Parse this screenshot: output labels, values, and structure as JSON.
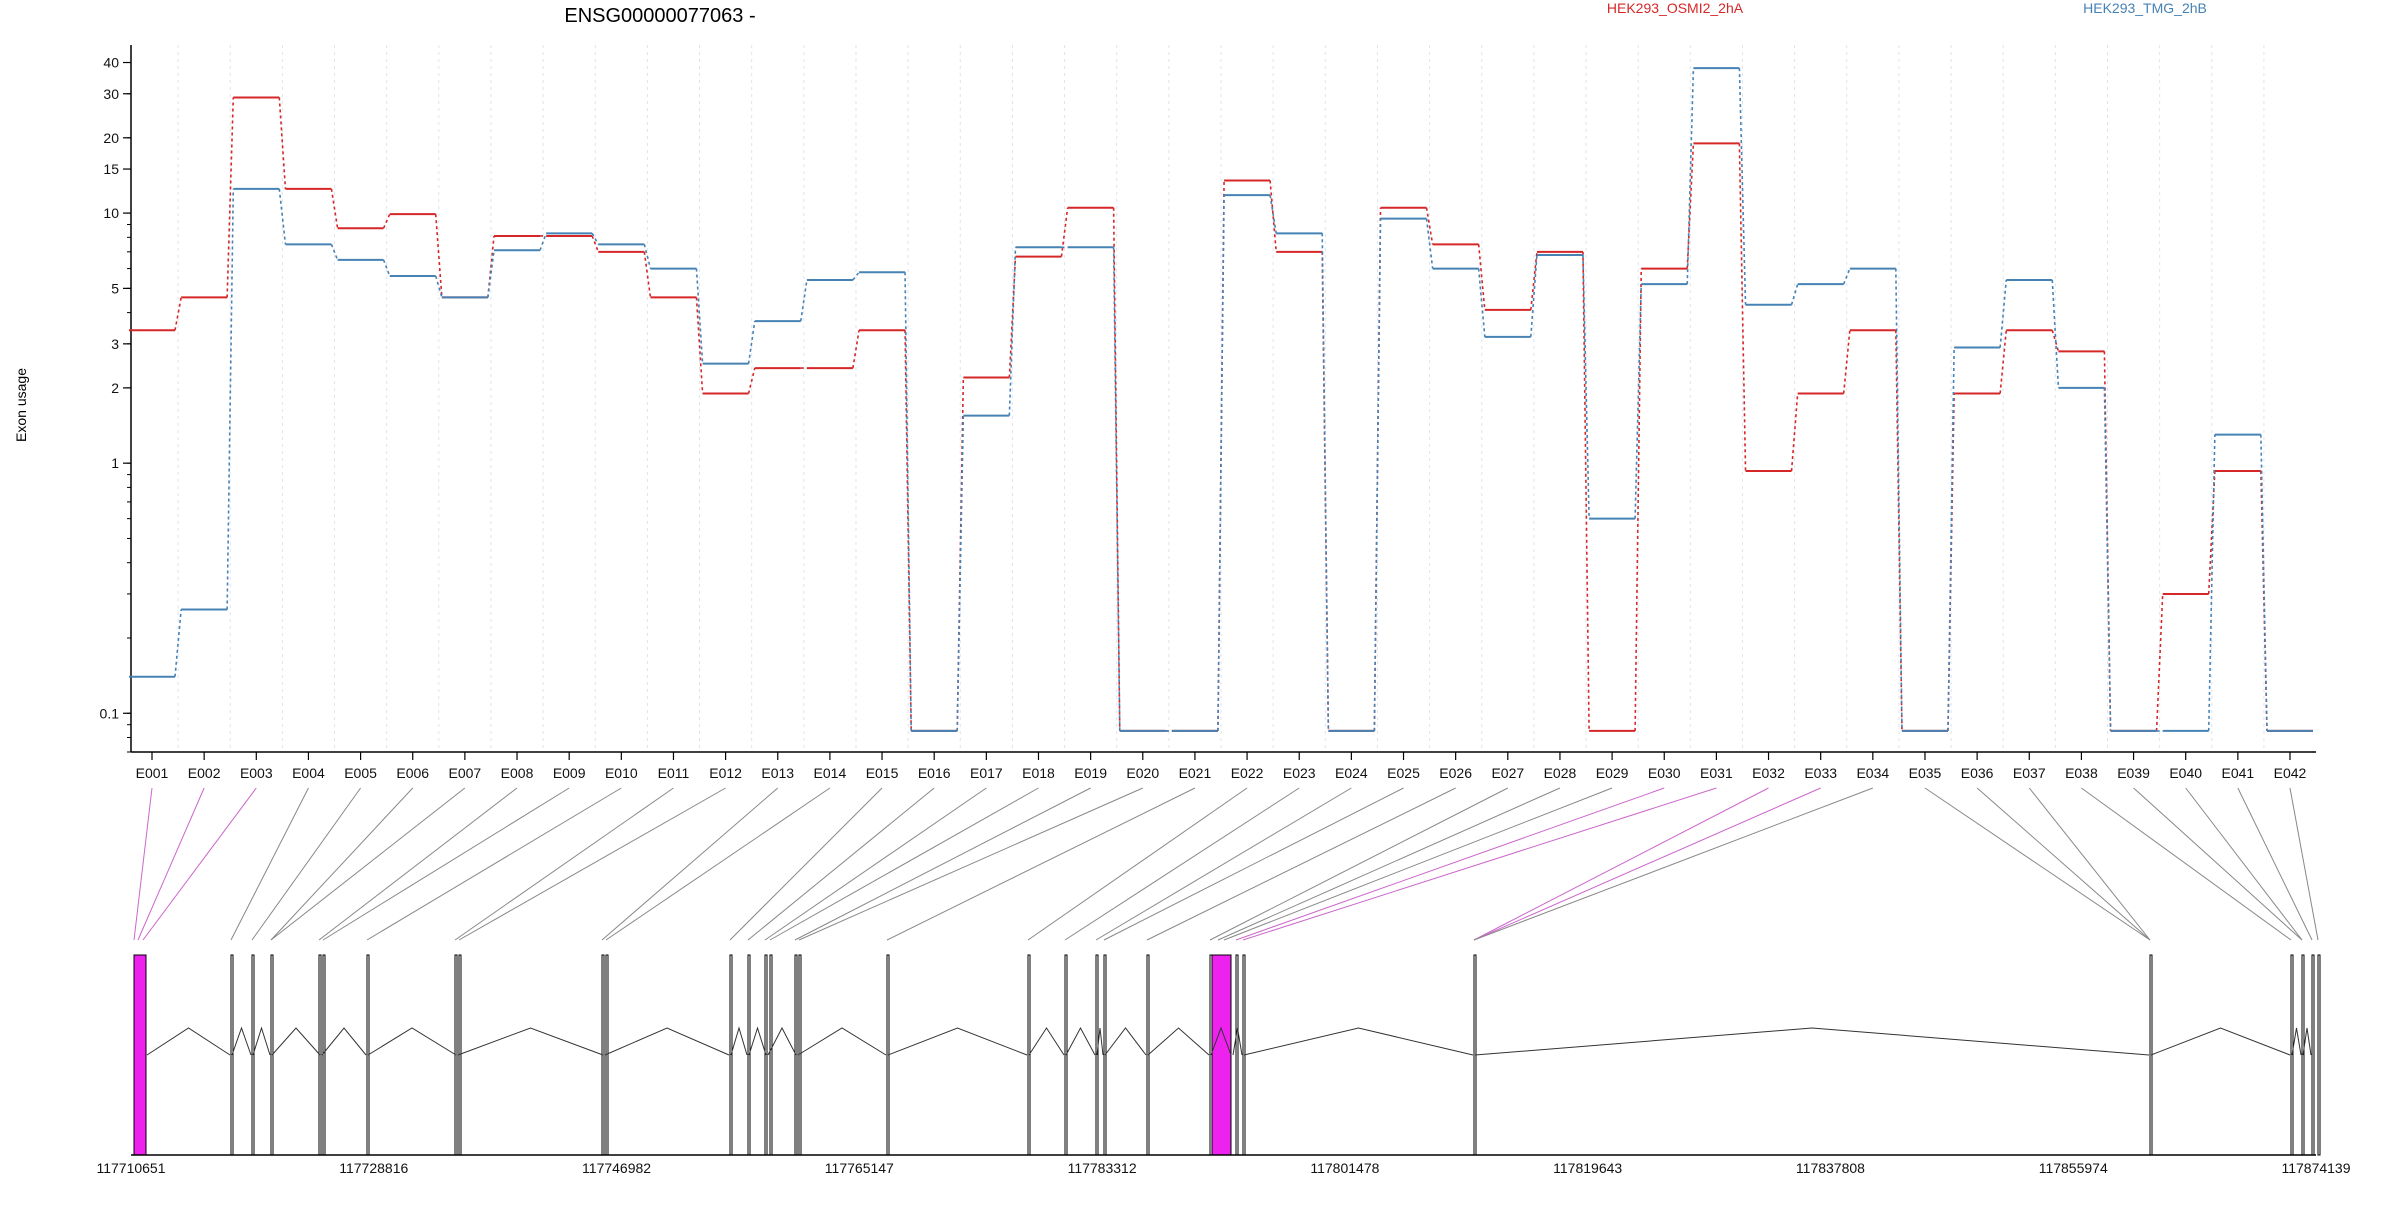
{
  "chart_data": {
    "type": "line",
    "title": "ENSG00000077063 -",
    "ylabel": "Exon usage",
    "xlabel": "",
    "y_scale": "log",
    "ylim": [
      0.07,
      47
    ],
    "y_ticks": [
      0.1,
      1,
      2,
      3,
      5,
      10,
      15,
      20,
      30,
      40
    ],
    "y_tick_labels": [
      "0.1",
      "1",
      "2",
      "3",
      "5",
      "10",
      "15",
      "20",
      "30",
      "40"
    ],
    "grid": "vertical dotted",
    "legend_placement": "top",
    "categories": [
      "E001",
      "E002",
      "E003",
      "E004",
      "E005",
      "E006",
      "E007",
      "E008",
      "E009",
      "E010",
      "E011",
      "E012",
      "E013",
      "E014",
      "E015",
      "E016",
      "E017",
      "E018",
      "E019",
      "E020",
      "E021",
      "E022",
      "E023",
      "E024",
      "E025",
      "E026",
      "E027",
      "E028",
      "E029",
      "E030",
      "E031",
      "E032",
      "E033",
      "E034",
      "E035",
      "E036",
      "E037",
      "E038",
      "E039",
      "E040",
      "E041",
      "E042"
    ],
    "series": [
      {
        "name": "HEK293_OSMI2_2hA",
        "color": "#d62728",
        "values": [
          3.4,
          4.6,
          29,
          12.5,
          8.7,
          9.9,
          4.6,
          8.1,
          8.1,
          7.0,
          4.6,
          1.9,
          2.4,
          2.4,
          3.4,
          0.085,
          2.2,
          6.7,
          10.5,
          0.085,
          0.085,
          13.5,
          7.0,
          0.085,
          10.5,
          7.5,
          4.1,
          7.0,
          0.085,
          6.0,
          19,
          0.93,
          1.9,
          3.4,
          0.085,
          1.9,
          3.4,
          2.8,
          0.085,
          0.3,
          0.93,
          0.085
        ]
      },
      {
        "name": "HEK293_TMG_2hB",
        "color": "#4682b4",
        "values": [
          0.14,
          0.26,
          12.5,
          7.5,
          6.5,
          5.6,
          4.6,
          7.1,
          8.3,
          7.5,
          6.0,
          2.5,
          3.7,
          5.4,
          5.8,
          0.085,
          1.55,
          7.3,
          7.3,
          0.085,
          0.085,
          11.8,
          8.3,
          0.085,
          9.5,
          6.0,
          3.2,
          6.8,
          0.6,
          5.2,
          38,
          4.3,
          5.2,
          6.0,
          0.085,
          2.9,
          5.4,
          2.0,
          0.085,
          0.085,
          1.3,
          0.085
        ]
      }
    ]
  },
  "gene_model": {
    "coord_labels": [
      "117710651",
      "117728816",
      "117746982",
      "117765147",
      "117783312",
      "117801478",
      "117819643",
      "117837808",
      "117855974",
      "117874139"
    ],
    "exon_highlight_color": "#ee22ee"
  }
}
